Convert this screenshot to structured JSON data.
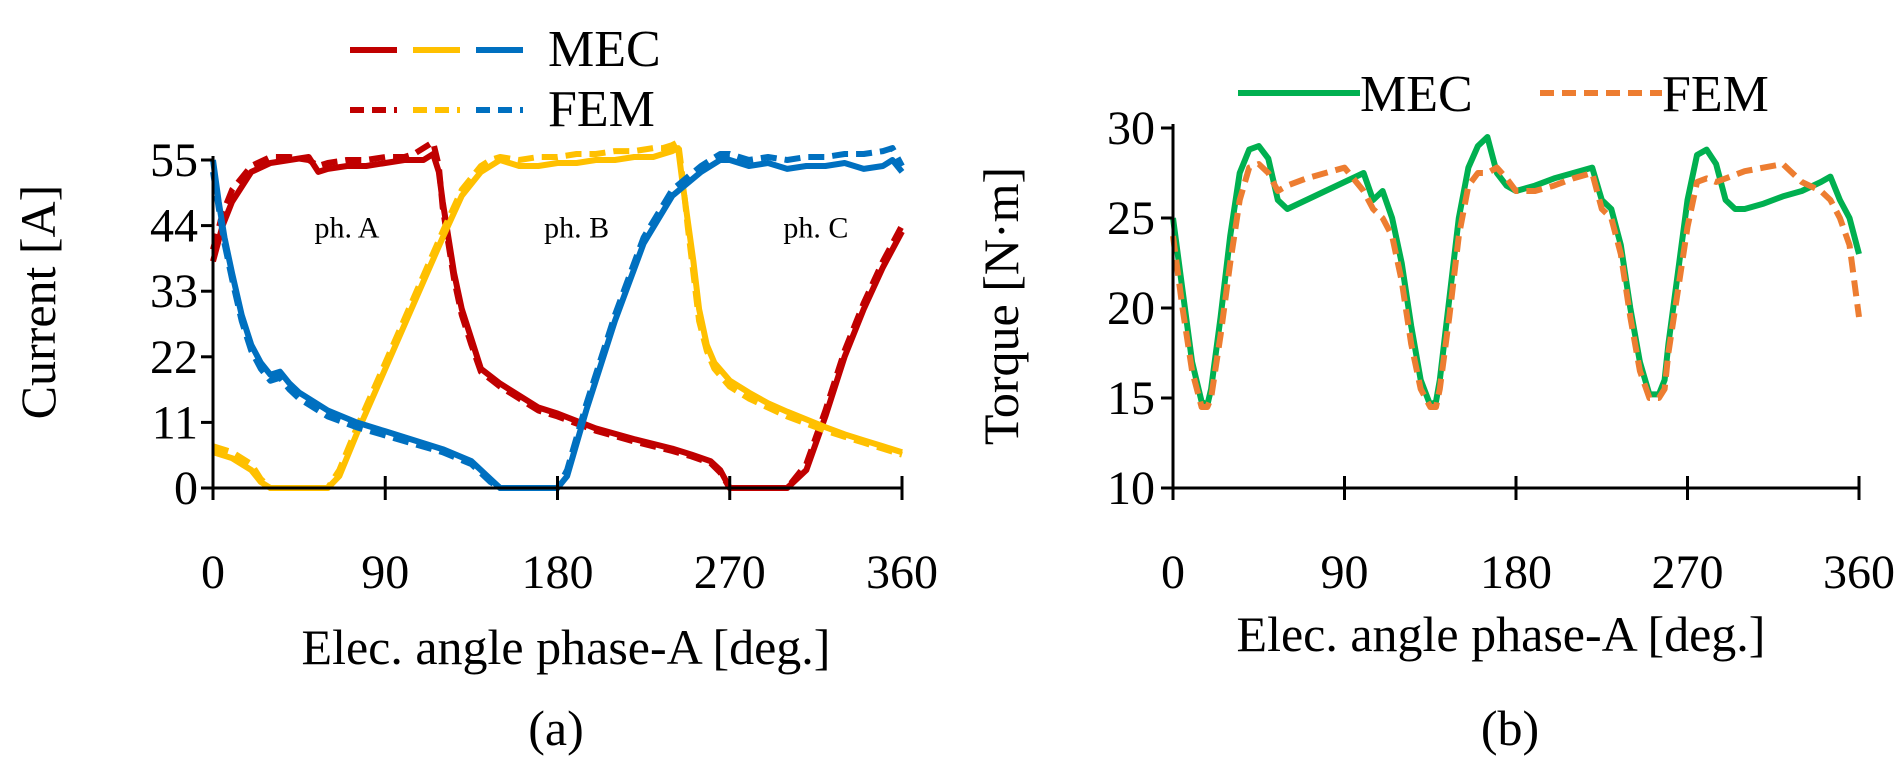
{
  "figure": {
    "caption_a": "(a)",
    "caption_b": "(b)"
  },
  "chart_data": [
    {
      "type": "line",
      "panel": "(a)",
      "xlabel": "Elec. angle phase-A [deg.]",
      "ylabel": "Current [A]",
      "xlim": [
        0,
        360
      ],
      "ylim": [
        0,
        55
      ],
      "xticks": [
        0,
        90,
        180,
        270,
        360
      ],
      "yticks": [
        0,
        11,
        22,
        33,
        44,
        55
      ],
      "grid": false,
      "legend_placement": "top",
      "legend": [
        {
          "label": "MEC",
          "style": "solid",
          "colors": [
            "#c00000",
            "#ffc000",
            "#0070c0"
          ]
        },
        {
          "label": "FEM",
          "style": "dashed",
          "colors": [
            "#c00000",
            "#ffc000",
            "#0070c0"
          ]
        }
      ],
      "annotations": [
        {
          "text": "ph. A",
          "x": 70,
          "y": 42
        },
        {
          "text": "ph. B",
          "x": 190,
          "y": 42
        },
        {
          "text": "ph. C",
          "x": 315,
          "y": 42
        }
      ],
      "series": [
        {
          "phase": "ph. A",
          "model": "MEC",
          "color": "#c00000",
          "style": "solid",
          "x": [
            0,
            5,
            10,
            20,
            30,
            40,
            50,
            55,
            60,
            70,
            80,
            90,
            100,
            105,
            110,
            115,
            118,
            120,
            123,
            126,
            130,
            135,
            140,
            150,
            160,
            170,
            180,
            200,
            220,
            240,
            250,
            260,
            265,
            270,
            280,
            290,
            300,
            310,
            320,
            330,
            340,
            350,
            360
          ],
          "y": [
            38,
            44,
            48,
            53,
            54.5,
            55,
            55.5,
            53,
            53.5,
            54,
            54,
            54.5,
            55,
            55,
            55,
            56,
            53,
            48,
            42,
            36,
            30,
            25,
            20,
            17.5,
            15.5,
            13.5,
            12.5,
            10,
            8.2,
            6.6,
            5.6,
            4.5,
            3,
            0,
            0,
            0,
            0,
            3,
            12,
            22,
            30,
            37,
            43
          ]
        },
        {
          "phase": "ph. A",
          "model": "FEM",
          "color": "#c00000",
          "style": "dashed",
          "x": [
            0,
            5,
            10,
            20,
            30,
            40,
            50,
            55,
            60,
            70,
            80,
            90,
            100,
            105,
            110,
            115,
            118,
            120,
            123,
            126,
            130,
            135,
            140,
            150,
            160,
            170,
            180,
            200,
            220,
            240,
            250,
            260,
            265,
            270,
            280,
            290,
            300,
            310,
            320,
            330,
            340,
            350,
            360
          ],
          "y": [
            40,
            46,
            50,
            54,
            55.5,
            55.5,
            55,
            54,
            54.5,
            55,
            55,
            55.5,
            55.5,
            56,
            57,
            58,
            54,
            47,
            41,
            35,
            29,
            24,
            19.5,
            17,
            15,
            13,
            12,
            9.6,
            7.8,
            6.2,
            5.3,
            4.2,
            2.6,
            0,
            0,
            0,
            0,
            4,
            13,
            23,
            31,
            38,
            44
          ]
        },
        {
          "phase": "ph. B",
          "model": "MEC",
          "color": "#ffc000",
          "style": "solid",
          "x": [
            0,
            10,
            20,
            25,
            30,
            40,
            50,
            60,
            66,
            75,
            90,
            105,
            120,
            130,
            140,
            145,
            150,
            160,
            170,
            180,
            190,
            200,
            210,
            220,
            230,
            235,
            240,
            243,
            245,
            248,
            251,
            254,
            258,
            262,
            266,
            270,
            280,
            290,
            300,
            310,
            320,
            330,
            340,
            350,
            360
          ],
          "y": [
            6,
            5,
            3,
            1,
            0,
            0,
            0,
            0,
            2,
            9,
            20,
            31,
            42,
            49,
            53,
            54,
            55,
            54,
            54,
            54.5,
            54.5,
            55,
            55,
            55.5,
            55.5,
            56,
            56.5,
            57,
            52,
            45,
            38,
            30,
            24,
            21,
            19.5,
            18,
            16,
            14.2,
            12.8,
            11.5,
            10.2,
            9,
            8,
            7,
            6
          ]
        },
        {
          "phase": "ph. B",
          "model": "FEM",
          "color": "#ffc000",
          "style": "dashed",
          "x": [
            0,
            10,
            20,
            25,
            30,
            40,
            50,
            60,
            66,
            75,
            90,
            105,
            120,
            130,
            140,
            145,
            150,
            160,
            170,
            180,
            190,
            200,
            210,
            220,
            230,
            235,
            240,
            243,
            245,
            248,
            251,
            254,
            258,
            262,
            266,
            270,
            280,
            290,
            300,
            310,
            320,
            330,
            340,
            350,
            360
          ],
          "y": [
            7,
            6,
            4,
            1.5,
            0,
            0,
            0,
            0,
            3,
            10,
            21,
            32,
            43,
            50,
            54,
            55,
            55.5,
            55,
            55.5,
            55.5,
            56,
            56,
            56.5,
            56.5,
            57,
            57,
            57.5,
            58,
            53,
            44,
            36,
            28,
            23,
            20,
            18.5,
            17,
            15,
            13.5,
            12,
            10.8,
            9.6,
            8.6,
            7.6,
            6.6,
            5.6
          ]
        },
        {
          "phase": "ph. C",
          "model": "MEC",
          "color": "#0070c0",
          "style": "solid",
          "x": [
            0,
            3,
            6,
            10,
            15,
            20,
            25,
            30,
            35,
            40,
            45,
            50,
            60,
            75,
            90,
            105,
            120,
            135,
            145,
            150,
            160,
            170,
            180,
            185,
            195,
            210,
            225,
            240,
            255,
            265,
            270,
            280,
            290,
            300,
            310,
            320,
            330,
            340,
            350,
            355,
            360
          ],
          "y": [
            55,
            48,
            42,
            36,
            29,
            24,
            21,
            19,
            19.5,
            17.5,
            16,
            15,
            13,
            11,
            9.5,
            8,
            6.5,
            4.5,
            1.5,
            0,
            0,
            0,
            0,
            2,
            13,
            28,
            41,
            49,
            53,
            55,
            55,
            54,
            54.5,
            53.5,
            54,
            54,
            54.5,
            53.5,
            54,
            55,
            53
          ]
        },
        {
          "phase": "ph. C",
          "model": "FEM",
          "color": "#0070c0",
          "style": "dashed",
          "x": [
            0,
            3,
            6,
            10,
            15,
            20,
            25,
            30,
            35,
            40,
            45,
            50,
            60,
            75,
            90,
            105,
            120,
            135,
            145,
            150,
            160,
            170,
            180,
            185,
            195,
            210,
            225,
            240,
            255,
            265,
            270,
            280,
            290,
            300,
            310,
            320,
            330,
            340,
            350,
            355,
            360
          ],
          "y": [
            53,
            47,
            41,
            35,
            28,
            23,
            20,
            18,
            18.5,
            16.5,
            15,
            14,
            12,
            10.2,
            8.8,
            7.4,
            6,
            4,
            1,
            0,
            0,
            0,
            0,
            3,
            14,
            29,
            42,
            50,
            54,
            56,
            56,
            55,
            55.5,
            55,
            55.5,
            55.5,
            56,
            56,
            56.5,
            57,
            54
          ]
        }
      ]
    },
    {
      "type": "line",
      "panel": "(b)",
      "xlabel": "Elec. angle phase-A [deg.]",
      "ylabel": "Torque [N·m]",
      "xlim": [
        0,
        360
      ],
      "ylim": [
        10,
        30
      ],
      "xticks": [
        0,
        90,
        180,
        270,
        360
      ],
      "yticks": [
        10,
        15,
        20,
        25,
        30
      ],
      "grid": false,
      "legend_placement": "top",
      "series": [
        {
          "name": "MEC",
          "color": "#00b050",
          "style": "solid",
          "x": [
            0,
            5,
            10,
            15,
            18,
            20,
            25,
            30,
            35,
            40,
            45,
            50,
            55,
            60,
            70,
            80,
            90,
            100,
            105,
            110,
            115,
            120,
            125,
            130,
            135,
            138,
            140,
            145,
            150,
            155,
            160,
            165,
            170,
            175,
            180,
            190,
            200,
            210,
            220,
            225,
            230,
            235,
            240,
            245,
            250,
            255,
            258,
            260,
            265,
            270,
            275,
            280,
            285,
            290,
            295,
            300,
            310,
            320,
            330,
            340,
            345,
            350,
            355,
            360
          ],
          "y": [
            25,
            21,
            17,
            14.8,
            14.6,
            15.5,
            19.5,
            24,
            27.5,
            28.8,
            29,
            28.3,
            26,
            25.5,
            26,
            26.5,
            27,
            27.5,
            26,
            26.5,
            25,
            22.5,
            19,
            16,
            14.6,
            14.8,
            16,
            20.5,
            25,
            27.8,
            29,
            29.5,
            27.5,
            26.8,
            26.5,
            26.8,
            27.2,
            27.5,
            27.8,
            26,
            25.5,
            23.5,
            20,
            17,
            15.2,
            15.2,
            16,
            18,
            22,
            26,
            28.5,
            28.8,
            28,
            26,
            25.5,
            25.5,
            25.8,
            26.2,
            26.5,
            27,
            27.3,
            26,
            25,
            23
          ]
        },
        {
          "name": "FEM",
          "color": "#ed7d31",
          "style": "dashed",
          "x": [
            0,
            5,
            10,
            15,
            18,
            20,
            25,
            30,
            35,
            40,
            45,
            50,
            55,
            60,
            70,
            80,
            90,
            100,
            105,
            110,
            115,
            120,
            125,
            130,
            135,
            138,
            140,
            145,
            150,
            155,
            160,
            165,
            170,
            175,
            180,
            190,
            200,
            210,
            220,
            225,
            230,
            235,
            240,
            245,
            250,
            255,
            258,
            260,
            265,
            270,
            275,
            280,
            285,
            290,
            295,
            300,
            310,
            320,
            330,
            340,
            345,
            350,
            355,
            360
          ],
          "y": [
            24,
            20,
            16.5,
            14.5,
            14.5,
            15,
            18.5,
            22.5,
            26,
            27.8,
            28,
            27.5,
            26.5,
            26.8,
            27.2,
            27.5,
            27.8,
            26.5,
            25.5,
            25,
            24,
            21.5,
            18,
            15.5,
            14.5,
            14.5,
            15.5,
            19.5,
            24,
            26.8,
            27.5,
            27.5,
            27.8,
            27.2,
            26.5,
            26.5,
            26.8,
            27.2,
            27.5,
            25.5,
            25,
            23,
            19.5,
            16.5,
            15,
            15,
            15.5,
            17.5,
            21,
            24.5,
            27,
            27.2,
            27,
            27.2,
            27.4,
            27.6,
            27.8,
            28,
            27,
            26.5,
            26,
            25,
            23.5,
            19.5
          ]
        }
      ]
    }
  ]
}
